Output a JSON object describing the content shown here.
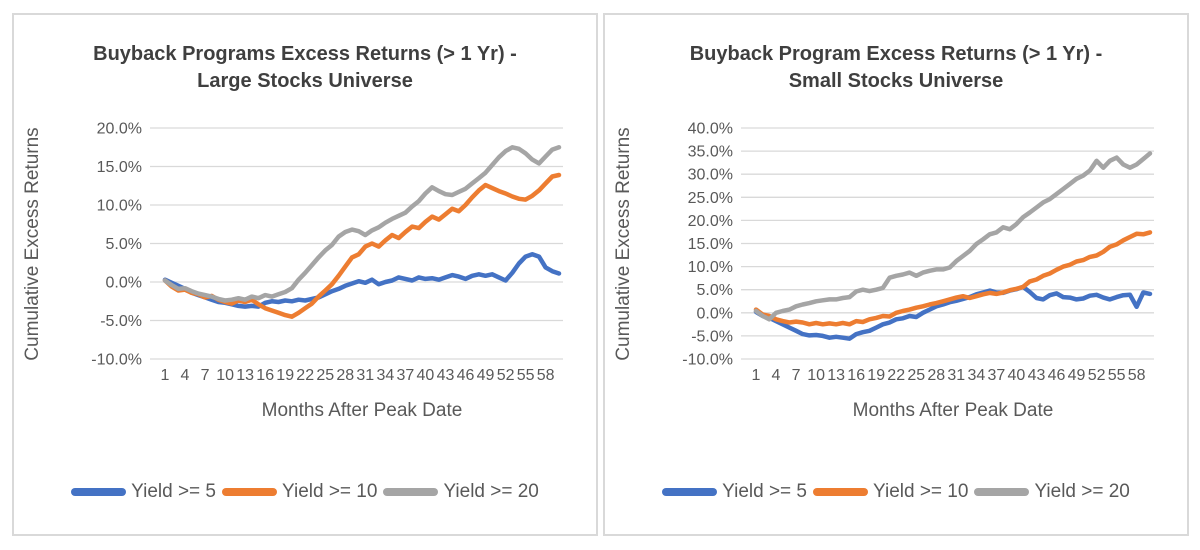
{
  "page": {
    "background": "#ffffff",
    "panel_border_color": "#d9d9d9",
    "gridline_color": "#d9d9d9",
    "axis_text_color": "#595959",
    "title_text_color": "#3f3f3f"
  },
  "chart_data": [
    {
      "type": "line",
      "title": "Buyback Programs Excess Returns (> 1 Yr) - Large Stocks Universe",
      "title_lines": [
        "Buyback Programs Excess Returns (> 1 Yr) -",
        "Large Stocks Universe"
      ],
      "xlabel": "Months After Peak Date",
      "ylabel": "Cumulative Excess Returns",
      "x_range": [
        1,
        60
      ],
      "x_ticks": [
        1,
        4,
        7,
        10,
        13,
        16,
        19,
        22,
        25,
        28,
        31,
        34,
        37,
        40,
        43,
        46,
        49,
        52,
        55,
        58
      ],
      "ylim": [
        -10,
        20
      ],
      "ytick_step": 5,
      "ytick_format": "percent_1dp",
      "grid": true,
      "legend_position": "bottom",
      "series": [
        {
          "name": "Yield >= 5",
          "color": "#4472C4",
          "values": [
            0.3,
            -0.1,
            -0.5,
            -0.9,
            -1.4,
            -1.7,
            -2.0,
            -2.3,
            -2.6,
            -2.7,
            -2.9,
            -3.1,
            -3.2,
            -3.1,
            -3.2,
            -2.7,
            -2.5,
            -2.6,
            -2.4,
            -2.5,
            -2.3,
            -2.4,
            -2.2,
            -2.0,
            -1.6,
            -1.2,
            -0.9,
            -0.5,
            -0.2,
            0.1,
            -0.1,
            0.3,
            -0.3,
            0.0,
            0.2,
            0.6,
            0.4,
            0.2,
            0.6,
            0.4,
            0.5,
            0.3,
            0.6,
            0.9,
            0.7,
            0.4,
            0.8,
            1.0,
            0.8,
            1.0,
            0.6,
            0.2,
            1.2,
            2.4,
            3.3,
            3.6,
            3.3,
            1.9,
            1.4,
            1.1
          ]
        },
        {
          "name": "Yield >= 10",
          "color": "#ED7D31",
          "values": [
            0.2,
            -0.6,
            -1.1,
            -1.0,
            -1.4,
            -1.6,
            -2.0,
            -1.8,
            -2.3,
            -2.6,
            -2.8,
            -2.4,
            -2.6,
            -2.3,
            -2.9,
            -3.4,
            -3.7,
            -4.0,
            -4.3,
            -4.5,
            -4.0,
            -3.4,
            -2.8,
            -1.9,
            -1.1,
            -0.3,
            0.8,
            2.0,
            3.2,
            3.6,
            4.6,
            5.0,
            4.6,
            5.4,
            6.1,
            5.7,
            6.5,
            7.2,
            7.0,
            7.8,
            8.5,
            8.1,
            8.8,
            9.5,
            9.2,
            10.0,
            11.0,
            11.9,
            12.6,
            12.2,
            11.8,
            11.5,
            11.1,
            10.8,
            10.7,
            11.2,
            11.9,
            12.8,
            13.7,
            13.9
          ]
        },
        {
          "name": "Yield >= 20",
          "color": "#A5A5A5",
          "values": [
            0.2,
            -0.4,
            -0.9,
            -0.8,
            -1.2,
            -1.5,
            -1.7,
            -1.9,
            -2.2,
            -2.4,
            -2.3,
            -2.1,
            -2.3,
            -1.9,
            -2.1,
            -1.7,
            -1.9,
            -1.6,
            -1.3,
            -0.8,
            0.3,
            1.2,
            2.2,
            3.2,
            4.1,
            4.8,
            5.9,
            6.5,
            6.8,
            6.6,
            6.1,
            6.7,
            7.1,
            7.7,
            8.2,
            8.6,
            9.0,
            9.8,
            10.5,
            11.5,
            12.3,
            11.8,
            11.4,
            11.3,
            11.7,
            12.1,
            12.8,
            13.5,
            14.2,
            15.2,
            16.2,
            17.0,
            17.5,
            17.3,
            16.7,
            15.9,
            15.4,
            16.3,
            17.2,
            17.5
          ]
        }
      ]
    },
    {
      "type": "line",
      "title": "Buyback Program Excess Returns (> 1 Yr) - Small Stocks Universe",
      "title_lines": [
        "Buyback Program Excess Returns (> 1 Yr) -",
        "Small Stocks Universe"
      ],
      "xlabel": "Months After Peak Date",
      "ylabel": "Cumulative Excess Returns",
      "x_range": [
        1,
        60
      ],
      "x_ticks": [
        1,
        4,
        7,
        10,
        13,
        16,
        19,
        22,
        25,
        28,
        31,
        34,
        37,
        40,
        43,
        46,
        49,
        52,
        55,
        58
      ],
      "ylim": [
        -10,
        40
      ],
      "ytick_step": 5,
      "ytick_format": "percent_1dp",
      "grid": true,
      "legend_position": "bottom",
      "series": [
        {
          "name": "Yield >= 5",
          "color": "#4472C4",
          "values": [
            0.2,
            -0.7,
            -1.1,
            -1.8,
            -2.5,
            -3.2,
            -3.9,
            -4.6,
            -4.9,
            -4.8,
            -5.0,
            -5.4,
            -5.2,
            -5.4,
            -5.6,
            -4.6,
            -4.2,
            -3.9,
            -3.2,
            -2.5,
            -2.1,
            -1.4,
            -1.2,
            -0.7,
            -0.9,
            0.0,
            0.7,
            1.4,
            1.8,
            2.3,
            2.6,
            3.0,
            3.4,
            4.0,
            4.4,
            4.8,
            4.4,
            4.3,
            4.8,
            5.1,
            5.6,
            4.5,
            3.2,
            2.9,
            3.8,
            4.2,
            3.4,
            3.3,
            2.9,
            3.1,
            3.7,
            3.9,
            3.3,
            2.9,
            3.4,
            3.8,
            3.9,
            1.3,
            4.4,
            4.1
          ]
        },
        {
          "name": "Yield >= 10",
          "color": "#ED7D31",
          "values": [
            0.7,
            -0.4,
            -0.7,
            -1.4,
            -1.8,
            -2.1,
            -1.9,
            -2.1,
            -2.5,
            -2.2,
            -2.5,
            -2.3,
            -2.5,
            -2.2,
            -2.5,
            -1.8,
            -2.0,
            -1.4,
            -1.1,
            -0.7,
            -0.8,
            0.0,
            0.4,
            0.7,
            1.1,
            1.4,
            1.8,
            2.1,
            2.5,
            2.9,
            3.3,
            3.6,
            3.2,
            3.6,
            4.0,
            4.3,
            4.1,
            4.4,
            4.9,
            5.2,
            5.6,
            6.8,
            7.2,
            8.0,
            8.5,
            9.3,
            10.0,
            10.4,
            11.1,
            11.4,
            12.1,
            12.4,
            13.2,
            14.3,
            14.8,
            15.7,
            16.4,
            17.1,
            17.0,
            17.4
          ]
        },
        {
          "name": "Yield >= 20",
          "color": "#A5A5A5",
          "values": [
            0.4,
            -0.7,
            -1.4,
            0.0,
            0.4,
            0.7,
            1.4,
            1.8,
            2.1,
            2.5,
            2.7,
            2.9,
            2.9,
            3.2,
            3.4,
            4.6,
            5.0,
            4.7,
            5.0,
            5.4,
            7.6,
            8.0,
            8.3,
            8.7,
            8.0,
            8.7,
            9.1,
            9.4,
            9.4,
            9.8,
            11.2,
            12.3,
            13.4,
            14.9,
            15.9,
            17.0,
            17.4,
            18.5,
            18.1,
            19.2,
            20.7,
            21.7,
            22.8,
            23.9,
            24.6,
            25.7,
            26.8,
            27.9,
            29.0,
            29.7,
            30.8,
            32.9,
            31.4,
            32.9,
            33.6,
            32.1,
            31.4,
            32.1,
            33.3,
            34.5
          ]
        }
      ]
    }
  ]
}
